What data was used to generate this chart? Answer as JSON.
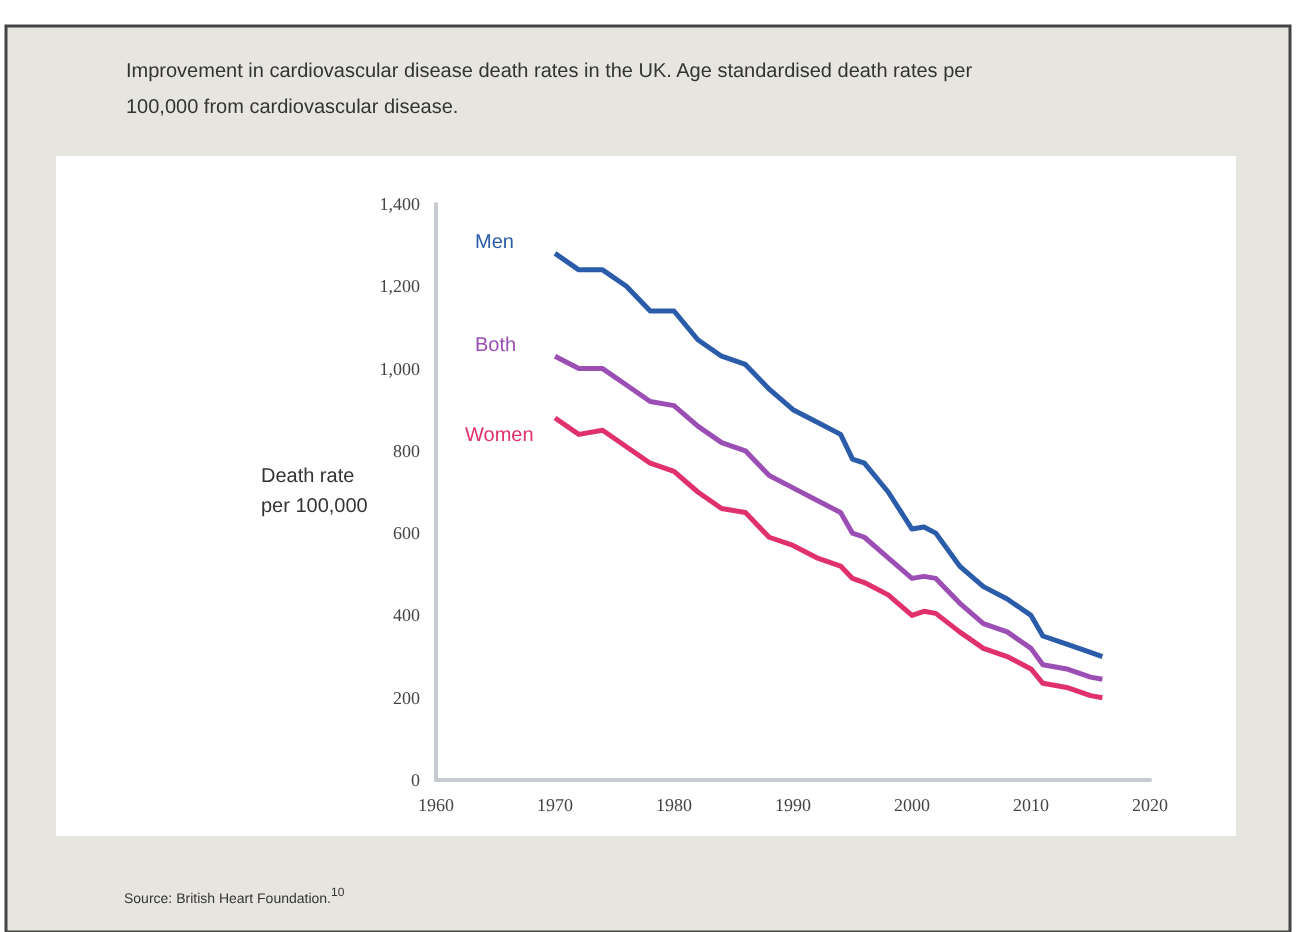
{
  "chart_data": {
    "type": "line",
    "title": "Improvement in cardiovascular disease death rates in the UK. Age standardised death rates per 100,000 from cardiovascular disease.",
    "ylabel": "Death rate\nper 100,000",
    "annotations": [
      "Source: British Heart Foundation.$^{10}$"
    ],
    "x": [
      1970,
      1972,
      1974,
      1976,
      1978,
      1980,
      1982,
      1984,
      1986,
      1988,
      1990,
      1992,
      1994,
      1995,
      1996,
      1998,
      2000,
      2001,
      2002,
      2004,
      2006,
      2008,
      2010,
      2011,
      2013,
      2015,
      2016
    ],
    "series": [
      {
        "name": "Men",
        "color": "#2a5caa",
        "values": [
          1280,
          1240,
          1240,
          1200,
          1140,
          1140,
          1070,
          1030,
          1010,
          950,
          900,
          870,
          840,
          780,
          770,
          700,
          610,
          615,
          600,
          520,
          470,
          440,
          400,
          350,
          330,
          310,
          300
        ]
      },
      {
        "name": "Both",
        "color": "#9b4fb5",
        "values": [
          1030,
          1000,
          1000,
          960,
          920,
          910,
          860,
          820,
          800,
          740,
          710,
          680,
          650,
          600,
          590,
          540,
          490,
          495,
          490,
          430,
          380,
          360,
          320,
          280,
          270,
          250,
          245
        ]
      },
      {
        "name": "Women",
        "color": "#e0306e",
        "values": [
          880,
          840,
          850,
          810,
          770,
          750,
          700,
          660,
          650,
          590,
          570,
          540,
          520,
          490,
          480,
          450,
          400,
          410,
          405,
          360,
          320,
          300,
          270,
          235,
          225,
          205,
          200
        ]
      }
    ],
    "xlim": [
      1960,
      2020
    ],
    "xticks": [
      1960,
      1970,
      1980,
      1990,
      2000,
      2010,
      2020
    ],
    "ylim": [
      0,
      1400
    ],
    "yticks": [
      0,
      200,
      400,
      600,
      800,
      {
        "value": 1000,
        "label": "1,000"
      },
      {
        "value": 1200,
        "label": "1,200"
      },
      {
        "value": 1400,
        "label": "1,400"
      }
    ],
    "grid": false,
    "legend": false,
    "marker": "none",
    "line_style": "solid"
  }
}
